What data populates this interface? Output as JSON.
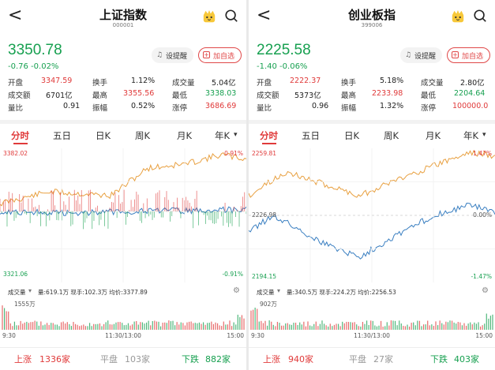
{
  "colors": {
    "up": "#e03a3a",
    "down": "#17a050",
    "price_line": "#e8a040",
    "avg_line": "#3a7fc1"
  },
  "panels": [
    {
      "nav": {
        "back": "<",
        "title": "上证指数",
        "code": "000001"
      },
      "price": "3350.78",
      "change": "-0.76  -0.02%",
      "remind": "设提醒",
      "addfav": "加自选",
      "stats": {
        "open_label": "开盘",
        "open": "3347.59",
        "turnover_label": "换手",
        "turnover": "1.12%",
        "vol_label": "成交量",
        "vol": "5.04亿",
        "amount_label": "成交额",
        "amount": "6701亿",
        "high_label": "最高",
        "high": "3355.56",
        "low_label": "最低",
        "low": "3338.03",
        "ratio_label": "量比",
        "ratio": "0.91",
        "amp_label": "振幅",
        "amp": "0.52%",
        "limit_label": "涨停",
        "limit": "3686.69"
      },
      "tabs": [
        "分时",
        "五日",
        "日K",
        "周K",
        "月K",
        "年K"
      ],
      "tab_more": "▾",
      "axis": {
        "top": "3382.02",
        "bottom": "3321.06",
        "top_pct": "0.91%",
        "bottom_pct": "-0.91%"
      },
      "chart_data": {
        "type": "line",
        "price_series": "orange",
        "avg_series": "blue"
      },
      "volume": {
        "label": "成交量",
        "drop": "▾",
        "info": "量:619.1万 现手:102.3万 均价:3377.89",
        "max": "1555万"
      },
      "time": {
        "start": "9:30",
        "mid": "11:30/13:00",
        "end": "15:00"
      },
      "breadth": {
        "up_label": "上涨",
        "up": "1336家",
        "flat_label": "平盘",
        "flat": "103家",
        "down_label": "下跌",
        "down": "882家"
      }
    },
    {
      "nav": {
        "back": "<",
        "title": "创业板指",
        "code": "399006"
      },
      "price": "2225.58",
      "change": "-1.40  -0.06%",
      "remind": "设提醒",
      "addfav": "加自选",
      "stats": {
        "open_label": "开盘",
        "open": "2222.37",
        "turnover_label": "换手",
        "turnover": "5.18%",
        "vol_label": "成交量",
        "vol": "2.80亿",
        "amount_label": "成交额",
        "amount": "5373亿",
        "high_label": "最高",
        "high": "2233.98",
        "low_label": "最低",
        "low": "2204.64",
        "ratio_label": "量比",
        "ratio": "0.96",
        "amp_label": "振幅",
        "amp": "1.32%",
        "limit_label": "涨停",
        "limit": "100000.0"
      },
      "tabs": [
        "分时",
        "五日",
        "日K",
        "周K",
        "月K",
        "年K"
      ],
      "tab_more": "▾",
      "axis": {
        "top": "2259.81",
        "mid": "2226.98",
        "bottom": "2194.15",
        "top_pct": "1.47%",
        "mid_pct": "0.00%",
        "bottom_pct": "-1.47%"
      },
      "volume": {
        "label": "成交量",
        "drop": "▾",
        "info": "量:340.5万 现手:224.2万 均价:2256.53",
        "max": "902万"
      },
      "time": {
        "start": "9:30",
        "mid": "11:30/13:00",
        "end": "15:00"
      },
      "breadth": {
        "up_label": "上涨",
        "up": "940家",
        "flat_label": "平盘",
        "flat": "27家",
        "down_label": "下跌",
        "down": "403家"
      }
    }
  ]
}
